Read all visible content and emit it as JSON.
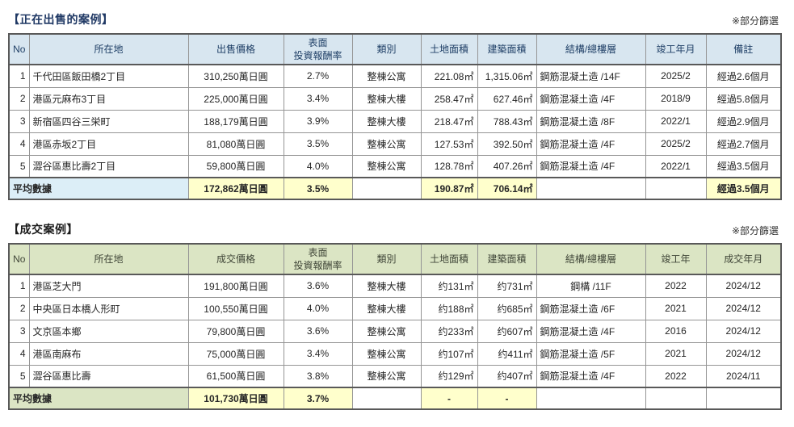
{
  "colors": {
    "sale_header_bg": "#d8e6f0",
    "sale_header_text": "#1f3f66",
    "sale_avg_label_bg": "#dceef7",
    "closed_header_bg": "#dbe5c4",
    "closed_header_text": "#3f4537",
    "highlight_bg": "#ffffcc",
    "sale_title_color": "#1f3864"
  },
  "sale": {
    "title": "【正在出售的案例】",
    "filter_note": "※部分篩選",
    "columns": [
      "No",
      "所在地",
      "出售價格",
      "表面\n投資報酬率",
      "類別",
      "土地面積",
      "建築面積",
      "結構/總樓層",
      "竣工年月",
      "備註"
    ],
    "rows": [
      [
        "1",
        "千代田區飯田橋2丁目",
        "310,250萬日圓",
        "2.7%",
        "整棟公寓",
        "221.08㎡",
        "1,315.06㎡",
        "鋼筋混凝土造 /14F",
        "2025/2",
        "經過2.6個月"
      ],
      [
        "2",
        "港區元麻布3丁目",
        "225,000萬日圓",
        "3.4%",
        "整棟大樓",
        "258.47㎡",
        "627.46㎡",
        "鋼筋混凝土造 /4F",
        "2018/9",
        "經過5.8個月"
      ],
      [
        "3",
        "新宿區四谷三栄町",
        "188,179萬日圓",
        "3.9%",
        "整棟大樓",
        "218.47㎡",
        "788.43㎡",
        "鋼筋混凝土造 /8F",
        "2022/1",
        "經過2.9個月"
      ],
      [
        "4",
        "港區赤坂2丁目",
        "81,080萬日圓",
        "3.5%",
        "整棟公寓",
        "127.53㎡",
        "392.50㎡",
        "鋼筋混凝土造 /4F",
        "2025/2",
        "經過2.7個月"
      ],
      [
        "5",
        "澀谷區惠比壽2丁目",
        "59,800萬日圓",
        "4.0%",
        "整棟公寓",
        "128.78㎡",
        "407.26㎡",
        "鋼筋混凝土造 /4F",
        "2022/1",
        "經過3.5個月"
      ]
    ],
    "average": {
      "label": "平均數據",
      "price": "172,862萬日圓",
      "yield": "3.5%",
      "land": "190.87㎡",
      "building": "706.14㎡",
      "note": "經過3.5個月"
    }
  },
  "closed": {
    "title": "【成交案例】",
    "filter_note": "※部分篩選",
    "columns": [
      "No",
      "所在地",
      "成交價格",
      "表面\n投資報酬率",
      "類別",
      "土地面積",
      "建築面積",
      "結構/總樓層",
      "竣工年",
      "成交年月"
    ],
    "rows": [
      [
        "1",
        "港區芝大門",
        "191,800萬日圓",
        "3.6%",
        "整棟大樓",
        "约131㎡",
        "约731㎡",
        "鋼構 /11F",
        "2022",
        "2024/12"
      ],
      [
        "2",
        "中央區日本橋人形町",
        "100,550萬日圓",
        "4.0%",
        "整棟大樓",
        "约188㎡",
        "约685㎡",
        "鋼筋混凝土造 /6F",
        "2021",
        "2024/12"
      ],
      [
        "3",
        "文京區本鄉",
        "79,800萬日圓",
        "3.6%",
        "整棟公寓",
        "约233㎡",
        "约607㎡",
        "鋼筋混凝土造 /4F",
        "2016",
        "2024/12"
      ],
      [
        "4",
        "港區南麻布",
        "75,000萬日圓",
        "3.4%",
        "整棟公寓",
        "约107㎡",
        "约411㎡",
        "鋼筋混凝土造 /5F",
        "2021",
        "2024/12"
      ],
      [
        "5",
        "澀谷區惠比壽",
        "61,500萬日圓",
        "3.8%",
        "整棟公寓",
        "约129㎡",
        "约407㎡",
        "鋼筋混凝土造 /4F",
        "2022",
        "2024/11"
      ]
    ],
    "average": {
      "label": "平均數據",
      "price": "101,730萬日圓",
      "yield": "3.7%",
      "land": "-",
      "building": "-"
    }
  }
}
